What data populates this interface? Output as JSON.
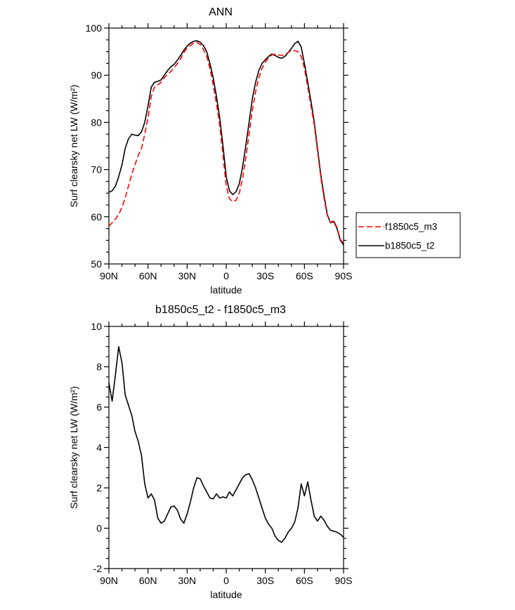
{
  "page": {
    "background": "#ffffff"
  },
  "chart_data": [
    {
      "type": "line",
      "title": "ANN",
      "xlabel": "latitude",
      "ylabel": "Surf clearsky net LW (W/m²)",
      "xlim": [
        90,
        -90
      ],
      "ylim": [
        50,
        100
      ],
      "xticks": [
        {
          "v": 90,
          "label": "90N"
        },
        {
          "v": 60,
          "label": "60N"
        },
        {
          "v": 30,
          "label": "30N"
        },
        {
          "v": 0,
          "label": "0"
        },
        {
          "v": -30,
          "label": "30S"
        },
        {
          "v": -60,
          "label": "60S"
        },
        {
          "v": -90,
          "label": "90S"
        }
      ],
      "yticks": [
        50,
        60,
        70,
        80,
        90,
        100
      ],
      "xminor_step": 10,
      "yminor_step": 2.5,
      "grid": false,
      "legend": {
        "position": "right-outside",
        "entries": [
          "f1850c5_m3",
          "b1850c5_t2"
        ]
      },
      "x": [
        90,
        87.5,
        85,
        82.5,
        80,
        77.5,
        75,
        72.5,
        70,
        67.5,
        65,
        62.5,
        60,
        57.5,
        55,
        52.5,
        50,
        47.5,
        45,
        42.5,
        40,
        37.5,
        35,
        32.5,
        30,
        27.5,
        25,
        22.5,
        20,
        17.5,
        15,
        12.5,
        10,
        7.5,
        5,
        2.5,
        0,
        -2.5,
        -5,
        -7.5,
        -10,
        -12.5,
        -15,
        -17.5,
        -20,
        -22.5,
        -25,
        -27.5,
        -30,
        -32.5,
        -35,
        -37.5,
        -40,
        -42.5,
        -45,
        -47.5,
        -50,
        -52.5,
        -55,
        -57.5,
        -60,
        -62.5,
        -65,
        -67.5,
        -70,
        -72.5,
        -75,
        -77.5,
        -80,
        -82.5,
        -85,
        -87.5,
        -90
      ],
      "series": [
        {
          "name": "f1850c5_m3",
          "color": "#ff0000",
          "style": "dashed",
          "values": [
            58,
            58.7,
            59.5,
            60.5,
            62,
            64,
            66.5,
            69,
            71,
            73,
            74.5,
            77.5,
            81,
            85.5,
            87.5,
            88,
            88.5,
            89.5,
            90.2,
            90.8,
            91.5,
            92.5,
            93.5,
            94.8,
            95.8,
            96.3,
            96.8,
            97,
            96.5,
            95.5,
            94,
            91.5,
            88,
            84,
            79.5,
            73,
            66.5,
            63.8,
            63.2,
            63.5,
            65,
            68,
            72.5,
            77.5,
            82.5,
            86.5,
            89.5,
            91.5,
            92.8,
            93.7,
            94.3,
            94.5,
            94.3,
            94.2,
            94.4,
            94.8,
            95.3,
            95.2,
            95,
            94,
            91.5,
            87.5,
            83.5,
            79.5,
            74,
            68.5,
            64,
            60.3,
            58.8,
            59.2,
            57.7,
            55.2,
            54.3
          ]
        },
        {
          "name": "b1850c5_t2",
          "color": "#000000",
          "style": "solid",
          "values": [
            65.2,
            65.5,
            66.5,
            68.5,
            71,
            74.5,
            76.5,
            77.5,
            77.3,
            77.2,
            78,
            80,
            83.5,
            87.5,
            88.5,
            88.7,
            89,
            90,
            91,
            91.8,
            92.3,
            93.2,
            94.2,
            95.3,
            96.2,
            96.8,
            97.2,
            97.3,
            97,
            96.3,
            95,
            92.5,
            89.5,
            85.5,
            81,
            75,
            68.5,
            65.5,
            64.7,
            65.3,
            67,
            70.5,
            75,
            80,
            85,
            88.5,
            91,
            92.5,
            93.3,
            94,
            94.5,
            94.2,
            93.8,
            93.6,
            94,
            94.8,
            95.7,
            96.7,
            97.2,
            96,
            92.5,
            88.5,
            84.5,
            80,
            74.5,
            69,
            64.5,
            60.5,
            58.7,
            59,
            57.5,
            55,
            54
          ]
        }
      ]
    },
    {
      "type": "line",
      "title": "b1850c5_t2 - f1850c5_m3",
      "xlabel": "latitude",
      "ylabel": "Surf clearsky net LW (W/m²)",
      "xlim": [
        90,
        -90
      ],
      "ylim": [
        -2,
        10
      ],
      "xticks": [
        {
          "v": 90,
          "label": "90N"
        },
        {
          "v": 60,
          "label": "60N"
        },
        {
          "v": 30,
          "label": "30N"
        },
        {
          "v": 0,
          "label": "0"
        },
        {
          "v": -30,
          "label": "30S"
        },
        {
          "v": -60,
          "label": "60S"
        },
        {
          "v": -90,
          "label": "90S"
        }
      ],
      "yticks": [
        -2,
        0,
        2,
        4,
        6,
        8,
        10
      ],
      "xminor_step": 10,
      "yminor_step": 0.5,
      "grid": false,
      "x": [
        90,
        87.5,
        85,
        82.5,
        80,
        77.5,
        75,
        72.5,
        70,
        67.5,
        65,
        62.5,
        60,
        57.5,
        55,
        52.5,
        50,
        47.5,
        45,
        42.5,
        40,
        37.5,
        35,
        32.5,
        30,
        27.5,
        25,
        22.5,
        20,
        17.5,
        15,
        12.5,
        10,
        7.5,
        5,
        2.5,
        0,
        -2.5,
        -5,
        -7.5,
        -10,
        -12.5,
        -15,
        -17.5,
        -20,
        -22.5,
        -25,
        -27.5,
        -30,
        -32.5,
        -35,
        -37.5,
        -40,
        -42.5,
        -45,
        -47.5,
        -50,
        -52.5,
        -55,
        -57.5,
        -60,
        -62.5,
        -65,
        -67.5,
        -70,
        -72.5,
        -75,
        -77.5,
        -80,
        -82.5,
        -85,
        -87.5,
        -90
      ],
      "series": [
        {
          "name": "b1850c5_t2 - f1850c5_m3",
          "color": "#000000",
          "style": "solid",
          "values": [
            7.2,
            6.3,
            7.6,
            9.0,
            8.2,
            6.6,
            6.1,
            5.6,
            4.8,
            4.3,
            3.6,
            2.2,
            1.5,
            1.7,
            1.4,
            0.5,
            0.25,
            0.35,
            0.7,
            1.05,
            1.1,
            0.9,
            0.45,
            0.25,
            0.7,
            1.3,
            2.0,
            2.5,
            2.45,
            2.1,
            1.8,
            1.5,
            1.45,
            1.7,
            1.5,
            1.55,
            1.5,
            1.8,
            1.6,
            1.9,
            2.2,
            2.5,
            2.65,
            2.7,
            2.4,
            2.0,
            1.5,
            1.0,
            0.5,
            0.2,
            0.0,
            -0.4,
            -0.6,
            -0.7,
            -0.5,
            -0.2,
            0.0,
            0.3,
            1.0,
            2.2,
            1.6,
            2.3,
            1.4,
            0.6,
            0.35,
            0.6,
            0.4,
            0.1,
            -0.1,
            -0.15,
            -0.2,
            -0.3,
            -0.45
          ]
        }
      ]
    }
  ]
}
